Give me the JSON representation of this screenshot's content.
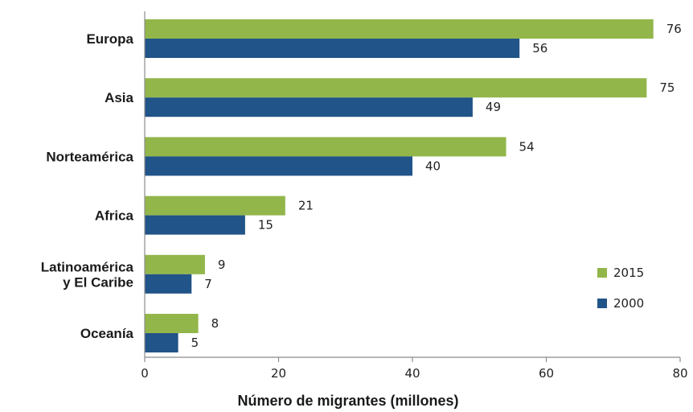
{
  "chart_data": {
    "type": "bar",
    "orientation": "horizontal",
    "title": "",
    "categories": [
      "Europa",
      "Asia",
      "Norteamérica",
      "Africa",
      "Latinoamérica\ny El Caribe",
      "Oceanía"
    ],
    "series": [
      {
        "name": "2015",
        "color": "#92b64a",
        "values": [
          76,
          75,
          54,
          21,
          9,
          8
        ]
      },
      {
        "name": "2000",
        "color": "#215488",
        "values": [
          56,
          49,
          40,
          15,
          7,
          5
        ]
      }
    ],
    "xlabel": "Número de migrantes (millones)",
    "ylabel": "",
    "xlim": [
      0,
      80
    ],
    "xticks": [
      0,
      20,
      40,
      60,
      80
    ],
    "grid": false,
    "legend_position": "right"
  }
}
